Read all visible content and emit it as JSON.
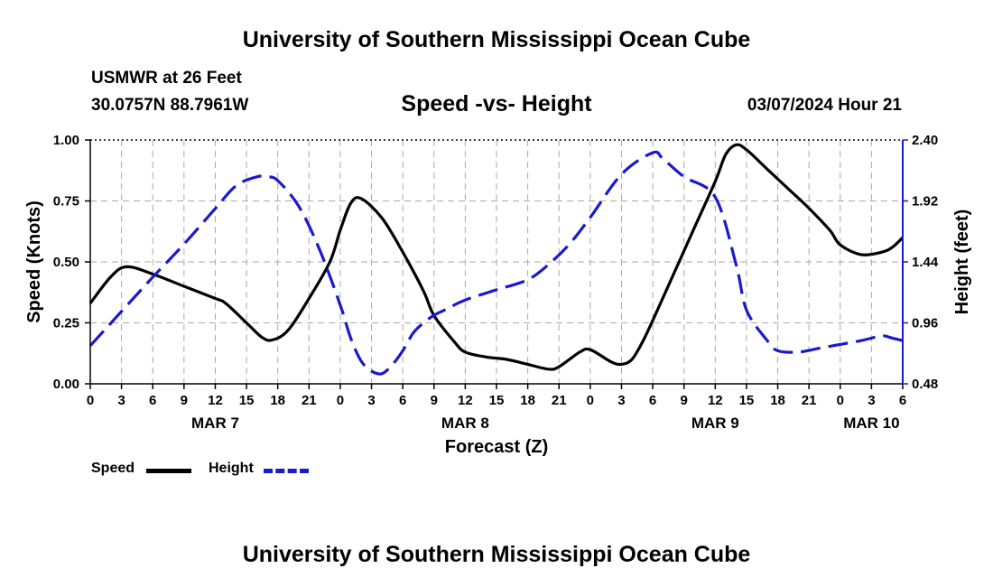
{
  "header": {
    "title": "University of Southern Mississippi Ocean Cube",
    "station": "USMWR at 26 Feet",
    "coords": "30.0757N  88.7961W",
    "subtitle": "Speed -vs- Height",
    "datetime": "03/07/2024 Hour 21"
  },
  "footer": {
    "title": "University of Southern Mississippi Ocean Cube"
  },
  "legend": {
    "speed_label": "Speed",
    "height_label": "Height"
  },
  "chart_data": {
    "type": "line",
    "title": "Speed -vs- Height",
    "xlabel": "Forecast (Z)",
    "ylabel": "Speed (Knots)",
    "y2label": "Height (feet)",
    "xlim": [
      0,
      78
    ],
    "ylim": [
      0,
      1.0
    ],
    "y2lim": [
      0.48,
      2.4
    ],
    "grid": true,
    "x_ticks": [
      0,
      3,
      6,
      9,
      12,
      15,
      18,
      21,
      24,
      27,
      30,
      33,
      36,
      39,
      42,
      45,
      48,
      51,
      54,
      57,
      60,
      63,
      66,
      69,
      72,
      75,
      78
    ],
    "x_tick_labels": [
      "0",
      "3",
      "6",
      "9",
      "12",
      "15",
      "18",
      "21",
      "0",
      "3",
      "6",
      "9",
      "12",
      "15",
      "18",
      "21",
      "0",
      "3",
      "6",
      "9",
      "12",
      "15",
      "18",
      "21",
      "0",
      "3",
      "6"
    ],
    "y_ticks": [
      0,
      0.25,
      0.5,
      0.75,
      1.0
    ],
    "y_tick_labels": [
      "0.00",
      "0.25",
      "0.50",
      "0.75",
      "1.00"
    ],
    "y2_ticks": [
      0.48,
      0.96,
      1.44,
      1.92,
      2.4
    ],
    "y2_tick_labels": [
      "0.48",
      "0.96",
      "1.44",
      "1.92",
      "2.40"
    ],
    "date_labels": [
      {
        "x": 12,
        "label": "MAR 7"
      },
      {
        "x": 36,
        "label": "MAR 8"
      },
      {
        "x": 60,
        "label": "MAR 9"
      },
      {
        "x": 75,
        "label": "MAR 10"
      }
    ],
    "series": [
      {
        "name": "Speed",
        "axis": "left",
        "color": "#000000",
        "style": "solid",
        "x": [
          0,
          2,
          3.5,
          6,
          9,
          12,
          13,
          15,
          16.5,
          17.5,
          19,
          21,
          23,
          24,
          25,
          26,
          28,
          30,
          32,
          33,
          35,
          36,
          38,
          40,
          42,
          44,
          45,
          47,
          48,
          50,
          51,
          52,
          53,
          54,
          56,
          58,
          60,
          61,
          62,
          63,
          65,
          67,
          69,
          71,
          72,
          74,
          76,
          77,
          78
        ],
        "values": [
          0.33,
          0.44,
          0.48,
          0.45,
          0.4,
          0.35,
          0.33,
          0.25,
          0.19,
          0.18,
          0.22,
          0.35,
          0.5,
          0.63,
          0.74,
          0.76,
          0.68,
          0.54,
          0.38,
          0.28,
          0.17,
          0.13,
          0.11,
          0.1,
          0.08,
          0.06,
          0.07,
          0.13,
          0.14,
          0.09,
          0.08,
          0.1,
          0.17,
          0.26,
          0.45,
          0.64,
          0.83,
          0.94,
          0.98,
          0.96,
          0.88,
          0.8,
          0.72,
          0.63,
          0.57,
          0.53,
          0.54,
          0.56,
          0.6
        ]
      },
      {
        "name": "Height",
        "axis": "right",
        "color": "#1a1acc",
        "style": "dashed",
        "x": [
          0,
          3,
          6,
          9,
          12,
          14,
          16,
          17,
          18,
          20,
          22,
          24,
          25,
          26,
          27,
          28,
          29,
          30,
          31,
          32,
          33,
          34,
          36,
          39,
          42,
          44,
          46,
          48,
          51,
          54,
          55,
          57,
          60,
          62,
          63,
          65,
          66,
          68,
          70,
          72,
          74,
          75,
          76,
          77,
          78
        ],
        "values": [
          0.78,
          1.05,
          1.32,
          1.58,
          1.86,
          2.04,
          2.11,
          2.11,
          2.08,
          1.88,
          1.54,
          1.1,
          0.84,
          0.66,
          0.58,
          0.56,
          0.63,
          0.74,
          0.88,
          0.96,
          1.02,
          1.06,
          1.14,
          1.22,
          1.3,
          1.42,
          1.58,
          1.79,
          2.13,
          2.3,
          2.25,
          2.11,
          1.95,
          1.42,
          1.06,
          0.82,
          0.74,
          0.73,
          0.76,
          0.79,
          0.82,
          0.84,
          0.86,
          0.84,
          0.82
        ]
      }
    ]
  }
}
